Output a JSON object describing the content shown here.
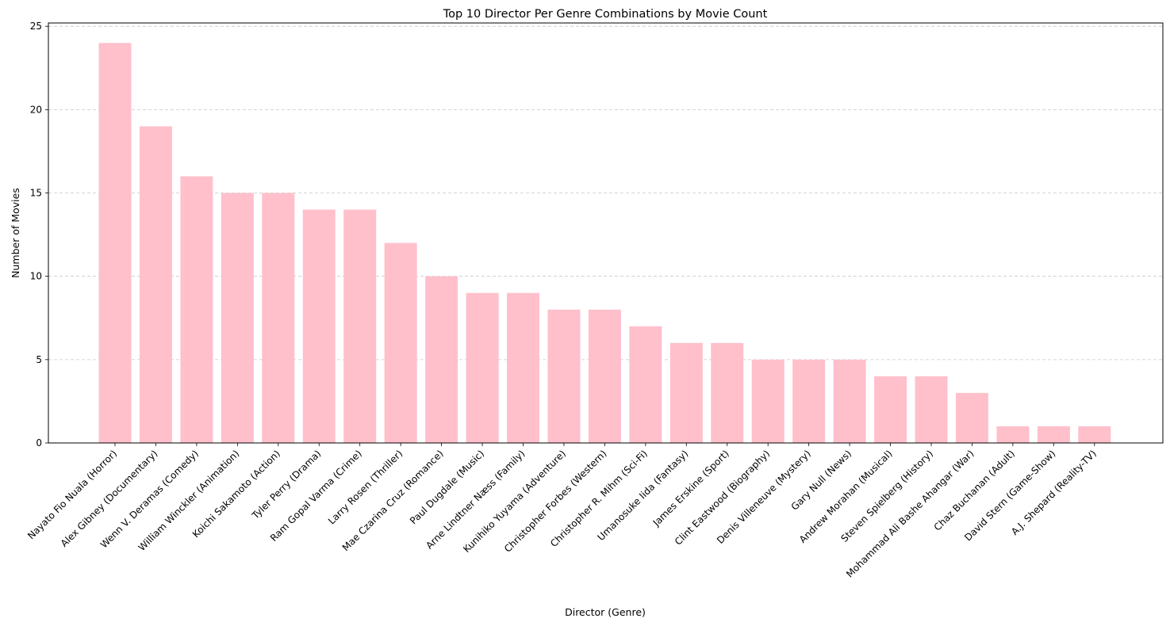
{
  "chart_data": {
    "type": "bar",
    "title": "Top 10 Director Per Genre Combinations by Movie Count",
    "xlabel": "Director (Genre)",
    "ylabel": "Number of Movies",
    "ylim": [
      0,
      25.2
    ],
    "yticks": [
      0,
      5,
      10,
      15,
      20,
      25
    ],
    "grid": "y-dashed",
    "bar_color": "#ffc0cb",
    "categories": [
      "Nayato Fio Nuala (Horror)",
      "Alex Gibney (Documentary)",
      "Wenn V. Deramas (Comedy)",
      "William Winckler (Animation)",
      "Koichi Sakamoto (Action)",
      "Tyler Perry (Drama)",
      "Ram Gopal Varma (Crime)",
      "Larry Rosen (Thriller)",
      "Mae Czarina Cruz (Romance)",
      "Paul Dugdale (Music)",
      "Arne Lindtner Næss (Family)",
      "Kunihiko Yuyama (Adventure)",
      "Christopher Forbes (Western)",
      "Christopher R. Mihm (Sci-Fi)",
      "Umanosuke Iida (Fantasy)",
      "James Erskine (Sport)",
      "Clint Eastwood (Biography)",
      "Denis Villeneuve (Mystery)",
      "Gary Null (News)",
      "Andrew Morahan (Musical)",
      "Steven Spielberg (History)",
      "Mohammad Ali Bashe Ahangar (War)",
      "Chaz Buchanan (Adult)",
      "David Stern (Game-Show)",
      "A.J. Shepard (Reality-TV)"
    ],
    "values": [
      24,
      19,
      16,
      15,
      15,
      14,
      14,
      12,
      10,
      9,
      9,
      8,
      8,
      7,
      6,
      6,
      5,
      5,
      5,
      4,
      4,
      3,
      1,
      1,
      1
    ]
  }
}
